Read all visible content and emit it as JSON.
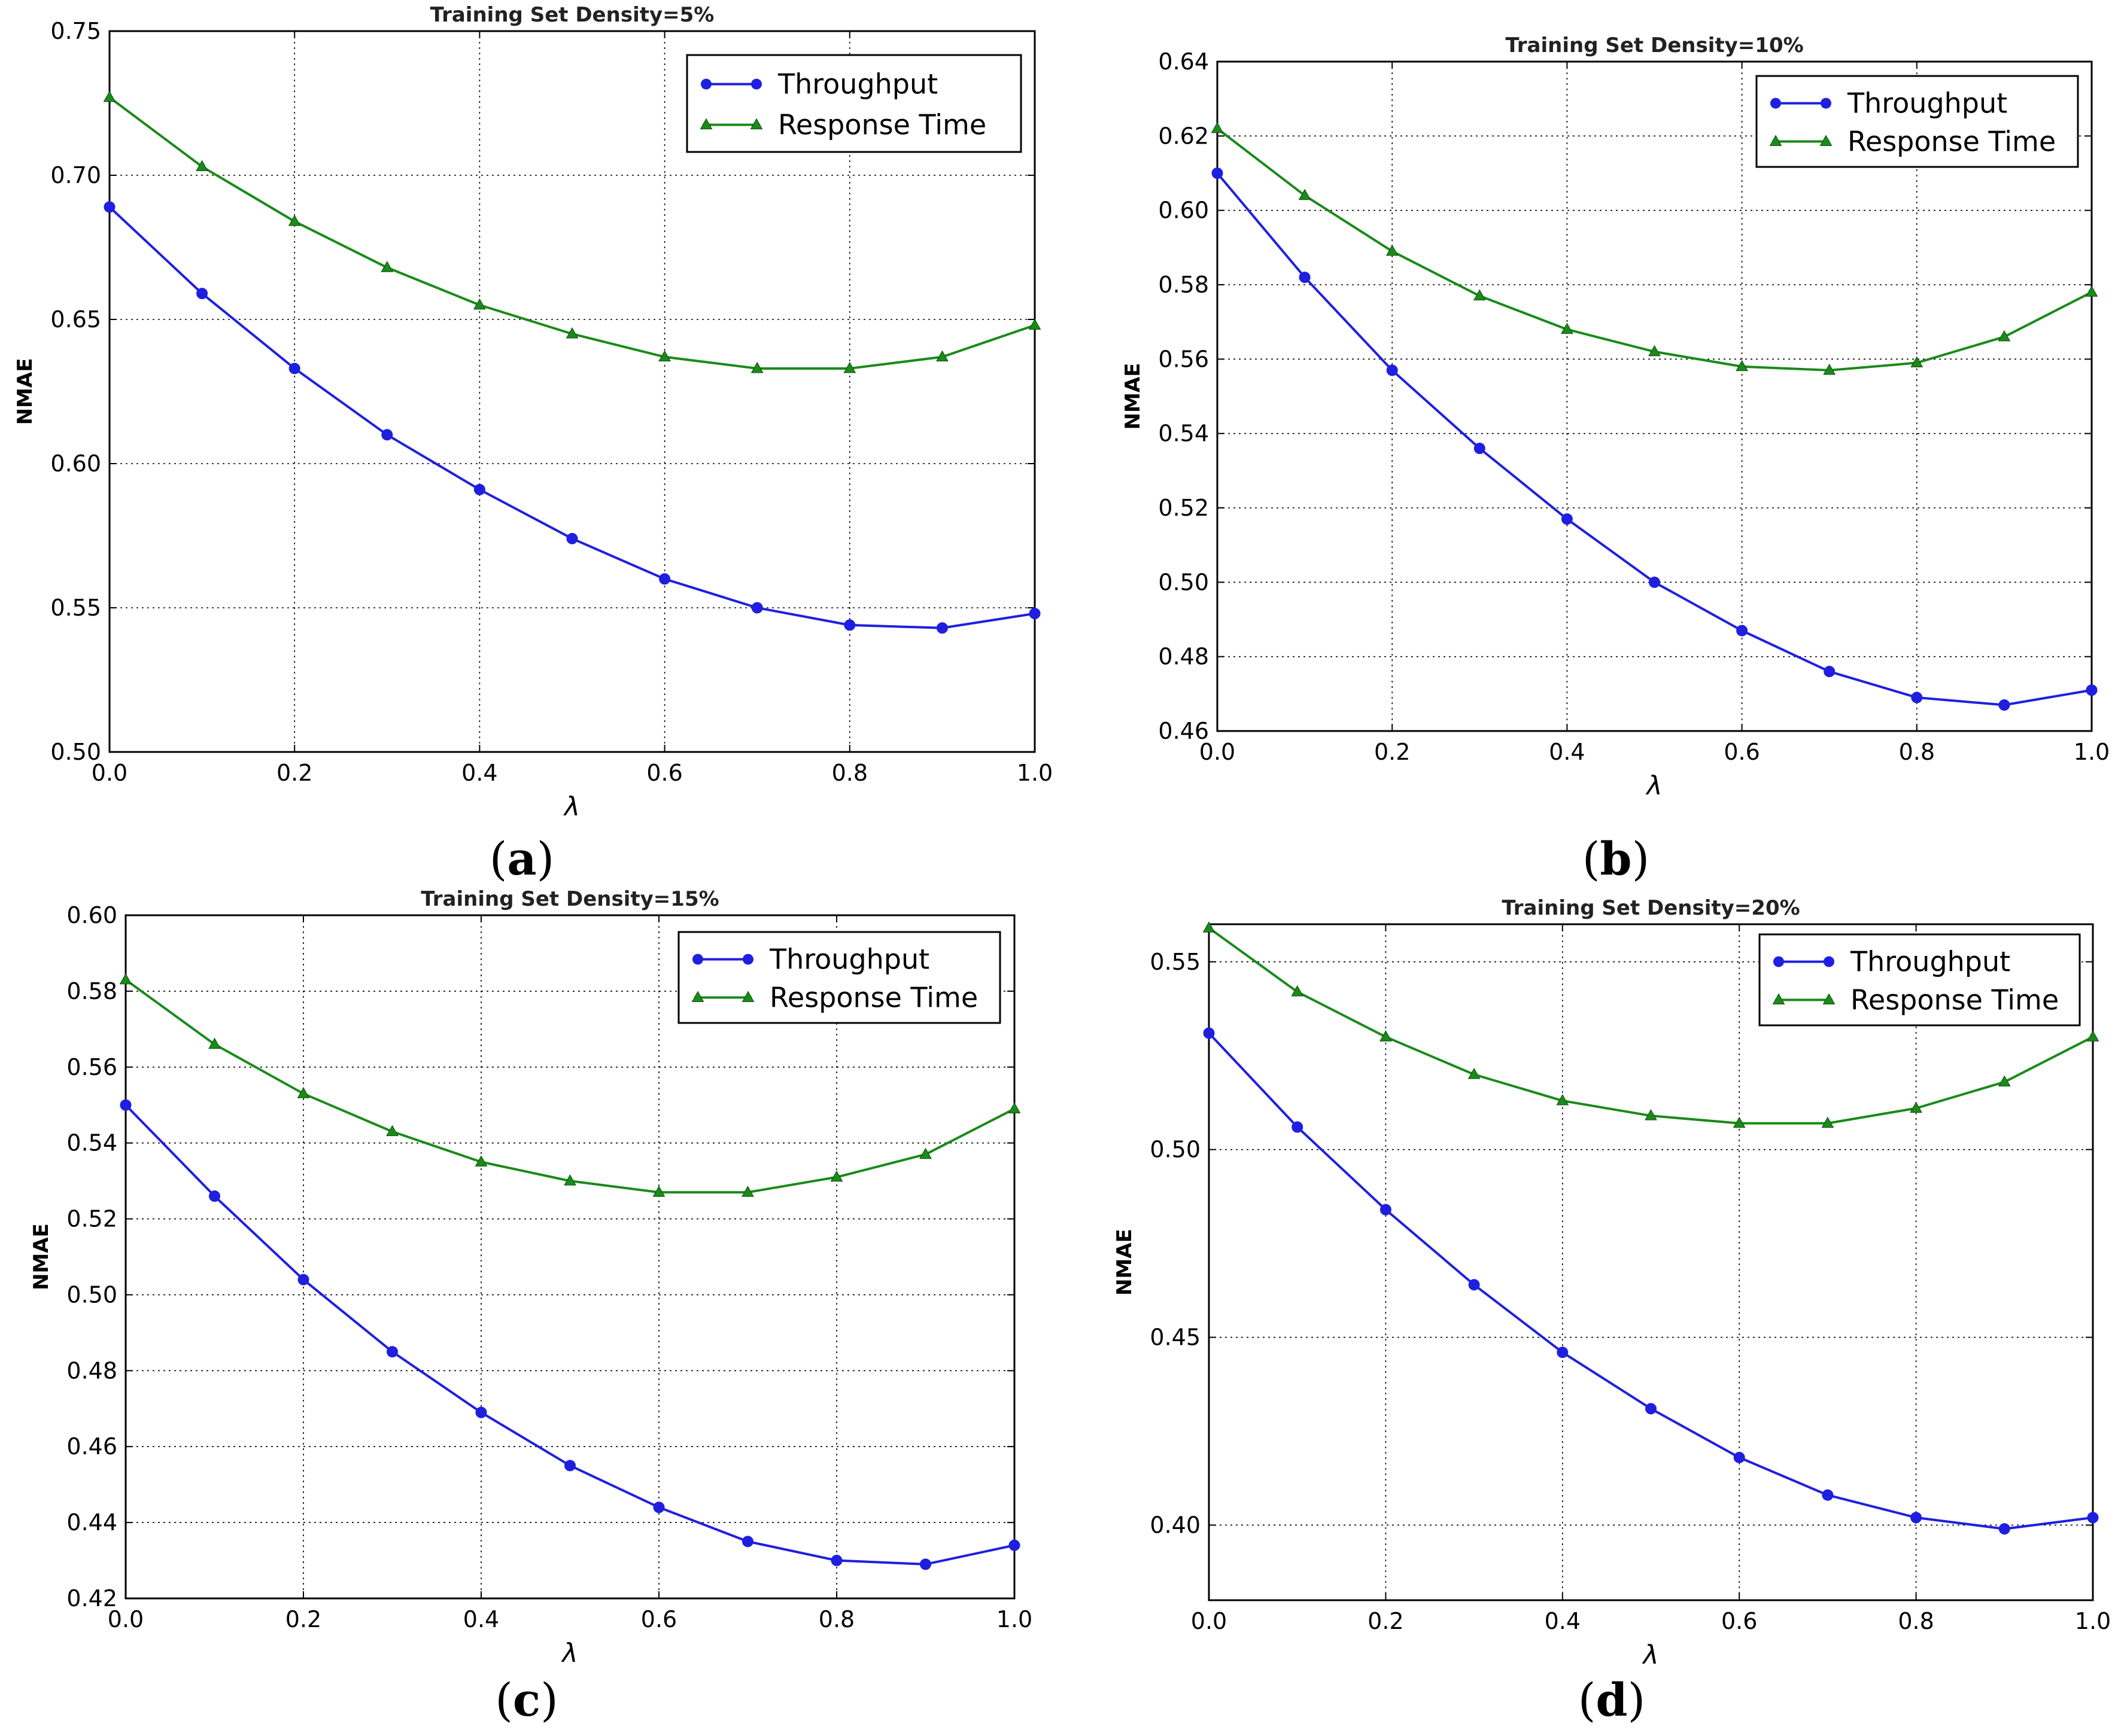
{
  "figure": {
    "colors": {
      "throughput": "#1f1fe0",
      "response_time": "#1a8a1a"
    }
  },
  "chart_data": [
    {
      "id": "a",
      "type": "line",
      "caption_letter": "a",
      "title": "Training Set Density=5%",
      "xlabel": "λ",
      "ylabel": "NMAE",
      "xlim": [
        0.0,
        1.0
      ],
      "ylim": [
        0.5,
        0.75
      ],
      "xticks": [
        "0.0",
        "0.2",
        "0.4",
        "0.6",
        "0.8",
        "1.0"
      ],
      "yticks": [
        "0.50",
        "0.55",
        "0.60",
        "0.65",
        "0.70",
        "0.75"
      ],
      "grid": true,
      "legend_position": "top-right",
      "x": [
        0.0,
        0.1,
        0.2,
        0.3,
        0.4,
        0.5,
        0.6,
        0.7,
        0.8,
        0.9,
        1.0
      ],
      "series": [
        {
          "name": "Throughput",
          "marker": "circle",
          "values": [
            0.689,
            0.659,
            0.633,
            0.61,
            0.591,
            0.574,
            0.56,
            0.55,
            0.544,
            0.543,
            0.548
          ]
        },
        {
          "name": "Response Time",
          "marker": "triangle",
          "values": [
            0.727,
            0.703,
            0.684,
            0.668,
            0.655,
            0.645,
            0.637,
            0.633,
            0.633,
            0.637,
            0.648
          ]
        }
      ]
    },
    {
      "id": "b",
      "type": "line",
      "caption_letter": "b",
      "title": "Training Set Density=10%",
      "xlabel": "λ",
      "ylabel": "NMAE",
      "xlim": [
        0.0,
        1.0
      ],
      "ylim": [
        0.46,
        0.64
      ],
      "xticks": [
        "0.0",
        "0.2",
        "0.4",
        "0.6",
        "0.8",
        "1.0"
      ],
      "yticks": [
        "0.46",
        "0.48",
        "0.50",
        "0.52",
        "0.54",
        "0.56",
        "0.58",
        "0.60",
        "0.62",
        "0.64"
      ],
      "grid": true,
      "legend_position": "top-right",
      "x": [
        0.0,
        0.1,
        0.2,
        0.3,
        0.4,
        0.5,
        0.6,
        0.7,
        0.8,
        0.9,
        1.0
      ],
      "series": [
        {
          "name": "Throughput",
          "marker": "circle",
          "values": [
            0.61,
            0.582,
            0.557,
            0.536,
            0.517,
            0.5,
            0.487,
            0.476,
            0.469,
            0.467,
            0.471
          ]
        },
        {
          "name": "Response Time",
          "marker": "triangle",
          "values": [
            0.622,
            0.604,
            0.589,
            0.577,
            0.568,
            0.562,
            0.558,
            0.557,
            0.559,
            0.566,
            0.578
          ]
        }
      ]
    },
    {
      "id": "c",
      "type": "line",
      "caption_letter": "c",
      "title": "Training Set Density=15%",
      "xlabel": "λ",
      "ylabel": "NMAE",
      "xlim": [
        0.0,
        1.0
      ],
      "ylim": [
        0.42,
        0.6
      ],
      "xticks": [
        "0.0",
        "0.2",
        "0.4",
        "0.6",
        "0.8",
        "1.0"
      ],
      "yticks": [
        "0.42",
        "0.44",
        "0.46",
        "0.48",
        "0.50",
        "0.52",
        "0.54",
        "0.56",
        "0.58",
        "0.60"
      ],
      "grid": true,
      "legend_position": "top-right",
      "x": [
        0.0,
        0.1,
        0.2,
        0.3,
        0.4,
        0.5,
        0.6,
        0.7,
        0.8,
        0.9,
        1.0
      ],
      "series": [
        {
          "name": "Throughput",
          "marker": "circle",
          "values": [
            0.55,
            0.526,
            0.504,
            0.485,
            0.469,
            0.455,
            0.444,
            0.435,
            0.43,
            0.429,
            0.434
          ]
        },
        {
          "name": "Response Time",
          "marker": "triangle",
          "values": [
            0.583,
            0.566,
            0.553,
            0.543,
            0.535,
            0.53,
            0.527,
            0.527,
            0.531,
            0.537,
            0.549
          ]
        }
      ]
    },
    {
      "id": "d",
      "type": "line",
      "caption_letter": "d",
      "title": "Training Set Density=20%",
      "xlabel": "λ",
      "ylabel": "NMAE",
      "xlim": [
        0.0,
        1.0
      ],
      "ylim": [
        0.38,
        0.56
      ],
      "xticks": [
        "0.0",
        "0.2",
        "0.4",
        "0.6",
        "0.8",
        "1.0"
      ],
      "yticks": [
        "0.40",
        "0.45",
        "0.50",
        "0.55"
      ],
      "grid": true,
      "legend_position": "top-right",
      "x": [
        0.0,
        0.1,
        0.2,
        0.3,
        0.4,
        0.5,
        0.6,
        0.7,
        0.8,
        0.9,
        1.0
      ],
      "series": [
        {
          "name": "Throughput",
          "marker": "circle",
          "values": [
            0.531,
            0.506,
            0.484,
            0.464,
            0.446,
            0.431,
            0.418,
            0.408,
            0.402,
            0.399,
            0.402
          ]
        },
        {
          "name": "Response Time",
          "marker": "triangle",
          "values": [
            0.559,
            0.542,
            0.53,
            0.52,
            0.513,
            0.509,
            0.507,
            0.507,
            0.511,
            0.518,
            0.53
          ]
        }
      ]
    }
  ]
}
